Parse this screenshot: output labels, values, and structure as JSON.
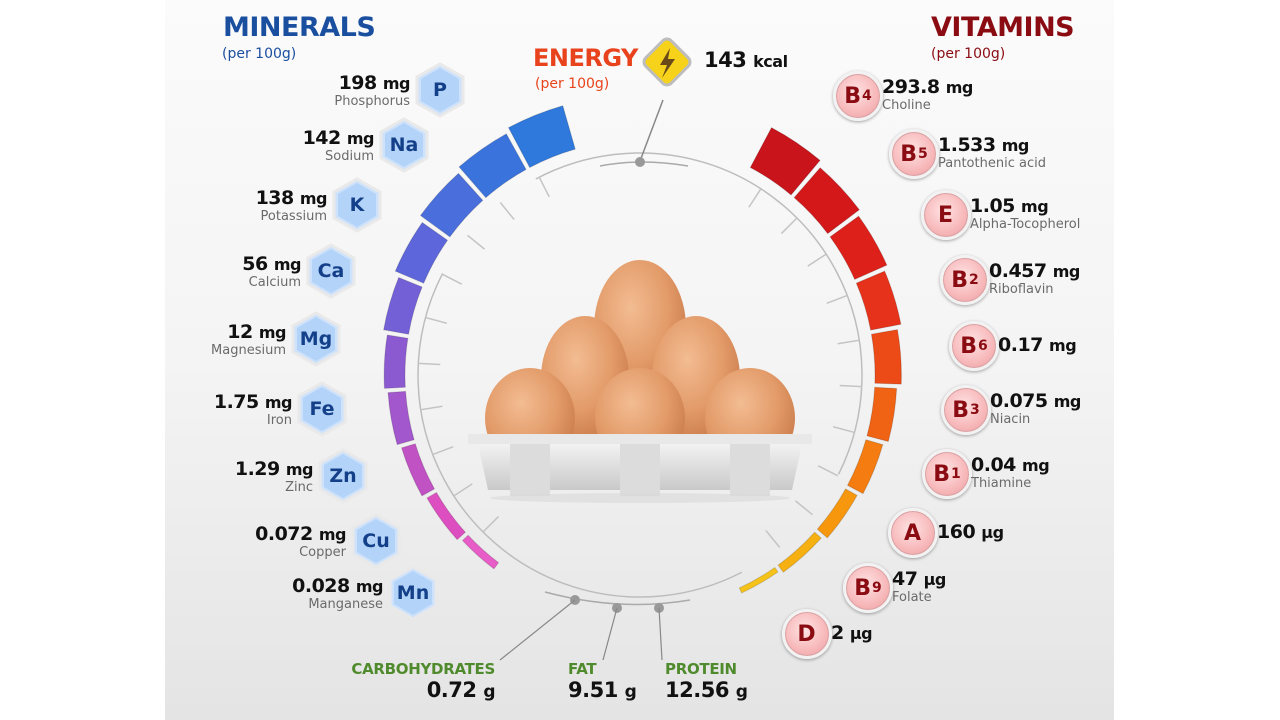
{
  "minerals": {
    "title": "MINERALS",
    "subtitle": "(per 100g)",
    "color": "#1a4fa0",
    "items": [
      {
        "symbol": "P",
        "value": "198",
        "unit": "mg",
        "name": "Phosphorus"
      },
      {
        "symbol": "Na",
        "value": "142",
        "unit": "mg",
        "name": "Sodium"
      },
      {
        "symbol": "K",
        "value": "138",
        "unit": "mg",
        "name": "Potassium"
      },
      {
        "symbol": "Ca",
        "value": "56",
        "unit": "mg",
        "name": "Calcium"
      },
      {
        "symbol": "Mg",
        "value": "12",
        "unit": "mg",
        "name": "Magnesium"
      },
      {
        "symbol": "Fe",
        "value": "1.75",
        "unit": "mg",
        "name": "Iron"
      },
      {
        "symbol": "Zn",
        "value": "1.29",
        "unit": "mg",
        "name": "Zinc"
      },
      {
        "symbol": "Cu",
        "value": "0.072",
        "unit": "mg",
        "name": "Copper"
      },
      {
        "symbol": "Mn",
        "value": "0.028",
        "unit": "mg",
        "name": "Manganese"
      }
    ]
  },
  "energy": {
    "title": "ENERGY",
    "subtitle": "(per 100g)",
    "value": "143",
    "unit": "kcal",
    "icon": "lightning-icon",
    "color": "#e8431c"
  },
  "vitamins": {
    "title": "VITAMINS",
    "subtitle": "(per 100g)",
    "color": "#8a0c12",
    "items": [
      {
        "letter": "B",
        "sub": "4",
        "value": "293.8",
        "unit": "mg",
        "name": "Choline"
      },
      {
        "letter": "B",
        "sub": "5",
        "value": "1.533",
        "unit": "mg",
        "name": "Pantothenic acid"
      },
      {
        "letter": "E",
        "sub": "",
        "value": "1.05",
        "unit": "mg",
        "name": "Alpha-Tocopherol"
      },
      {
        "letter": "B",
        "sub": "2",
        "value": "0.457",
        "unit": "mg",
        "name": "Riboflavin"
      },
      {
        "letter": "B",
        "sub": "6",
        "value": "0.17",
        "unit": "mg",
        "name": ""
      },
      {
        "letter": "B",
        "sub": "3",
        "value": "0.075",
        "unit": "mg",
        "name": "Niacin"
      },
      {
        "letter": "B",
        "sub": "1",
        "value": "0.04",
        "unit": "mg",
        "name": "Thiamine"
      },
      {
        "letter": "A",
        "sub": "",
        "value": "160",
        "unit": "µg",
        "name": ""
      },
      {
        "letter": "B",
        "sub": "9",
        "value": "47",
        "unit": "µg",
        "name": "Folate"
      },
      {
        "letter": "D",
        "sub": "",
        "value": "2",
        "unit": "µg",
        "name": ""
      }
    ]
  },
  "macros": [
    {
      "label": "CARBOHYDRATES",
      "value": "0.72",
      "unit": "g"
    },
    {
      "label": "FAT",
      "value": "9.51",
      "unit": "g"
    },
    {
      "label": "PROTEIN",
      "value": "12.56",
      "unit": "g"
    }
  ],
  "chart_data": {
    "type": "table",
    "title": "Egg nutrition facts (per 100g)",
    "energy": {
      "value": 143,
      "unit": "kcal"
    },
    "macronutrients": {
      "categories": [
        "Carbohydrates",
        "Fat",
        "Protein"
      ],
      "values": [
        0.72,
        9.51,
        12.56
      ],
      "unit": "g"
    },
    "minerals": {
      "categories": [
        "Phosphorus",
        "Sodium",
        "Potassium",
        "Calcium",
        "Magnesium",
        "Iron",
        "Zinc",
        "Copper",
        "Manganese"
      ],
      "symbols": [
        "P",
        "Na",
        "K",
        "Ca",
        "Mg",
        "Fe",
        "Zn",
        "Cu",
        "Mn"
      ],
      "values": [
        198,
        142,
        138,
        56,
        12,
        1.75,
        1.29,
        0.072,
        0.028
      ],
      "unit": "mg"
    },
    "vitamins": {
      "categories": [
        "B4 Choline",
        "B5 Pantothenic acid",
        "E Alpha-Tocopherol",
        "B2 Riboflavin",
        "B6",
        "B3 Niacin",
        "B1 Thiamine",
        "A",
        "B9 Folate",
        "D"
      ],
      "values": [
        293.8,
        1.533,
        1.05,
        0.457,
        0.17,
        0.075,
        0.04,
        160,
        47,
        2
      ],
      "units": [
        "mg",
        "mg",
        "mg",
        "mg",
        "mg",
        "mg",
        "mg",
        "µg",
        "µg",
        "µg"
      ]
    }
  }
}
